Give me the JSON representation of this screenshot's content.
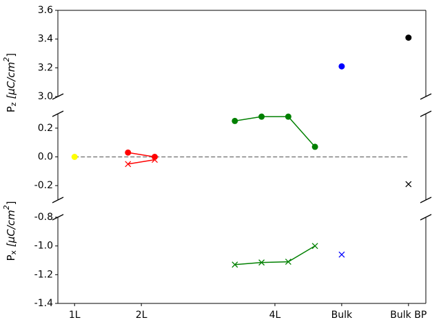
{
  "chart_data": [
    {
      "type": "line",
      "ylabel": {
        "base": "P",
        "sub": "z",
        "unit": " [μC/cm",
        "sup": "2",
        "close": "]"
      },
      "ylim": [
        3.0,
        3.6
      ],
      "yticks": [
        {
          "value": 3.0,
          "label": "3.0"
        },
        3.2,
        3.4,
        3.6
      ],
      "series": [
        {
          "color": "#0000ff",
          "marker": "o",
          "line": false,
          "x": [
            5
          ],
          "values": [
            3.21
          ]
        },
        {
          "color": "#000000",
          "marker": "o",
          "line": false,
          "x": [
            6
          ],
          "values": [
            3.41
          ]
        }
      ]
    },
    {
      "type": "line",
      "ylim": [
        -0.3,
        0.3
      ],
      "yticks": [
        -0.2,
        {
          "value": 0,
          "label": "0.0"
        },
        0.2
      ],
      "series": [
        {
          "color": "#808080",
          "marker": "none",
          "line": true,
          "dashed": true,
          "x": [
            1,
            6
          ],
          "values": [
            0,
            0
          ]
        },
        {
          "color": "#ffff00",
          "marker": "o",
          "line": false,
          "x": [
            1
          ],
          "values": [
            0
          ]
        },
        {
          "color": "#ff0000",
          "marker": "o",
          "line": true,
          "x": [
            1.8,
            2.2
          ],
          "values": [
            0.03,
            0.0
          ]
        },
        {
          "color": "#ff0000",
          "marker": "x",
          "line": true,
          "x": [
            1.8,
            2.2
          ],
          "values": [
            -0.05,
            -0.02
          ]
        },
        {
          "color": "#008000",
          "marker": "o",
          "line": true,
          "x": [
            3.4,
            3.8,
            4.2,
            4.6
          ],
          "values": [
            0.25,
            0.28,
            0.28,
            0.07
          ]
        },
        {
          "color": "#000000",
          "marker": "x",
          "line": false,
          "x": [
            6
          ],
          "values": [
            -0.19
          ]
        }
      ]
    },
    {
      "type": "line",
      "ylabel": {
        "base": "P",
        "sub": "x",
        "unit": " [μC/cm",
        "sup": "2",
        "close": "]"
      },
      "ylim": [
        -1.4,
        -0.8
      ],
      "yticks": [
        -1.4,
        -1.2,
        {
          "value": -1.0,
          "label": "-1.0"
        },
        -0.8
      ],
      "xlim": [
        0.75,
        6.26
      ],
      "xticks": [
        {
          "value": 1,
          "label": "1L"
        },
        {
          "value": 2,
          "label": "2L"
        },
        {
          "value": 4,
          "label": "4L"
        },
        {
          "value": 5,
          "label": "Bulk"
        },
        {
          "value": 6,
          "label": "Bulk BP"
        }
      ],
      "series": [
        {
          "color": "#008000",
          "marker": "x",
          "line": true,
          "x": [
            3.4,
            3.8,
            4.2,
            4.6
          ],
          "values": [
            -1.13,
            -1.115,
            -1.11,
            -1.0
          ]
        },
        {
          "color": "#0000ff",
          "marker": "x",
          "line": false,
          "x": [
            5
          ],
          "values": [
            -1.06
          ]
        }
      ]
    }
  ]
}
